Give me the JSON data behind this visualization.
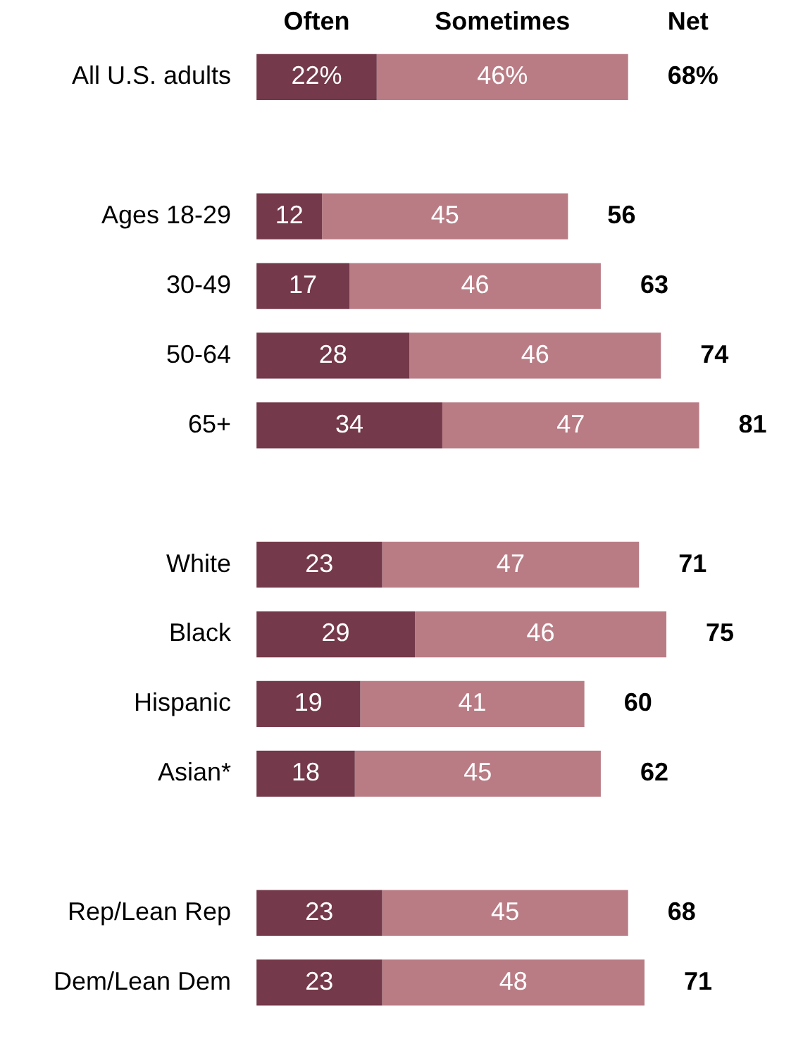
{
  "chart_data": {
    "type": "bar",
    "orientation": "horizontal",
    "stacked": true,
    "legend": false,
    "categories": [
      "All U.S. adults",
      null,
      "Ages 18-29",
      "30-49",
      "50-64",
      "65+",
      null,
      "White",
      "Black",
      "Hispanic",
      "Asian*",
      null,
      "Rep/Lean Rep",
      "Dem/Lean Dem"
    ],
    "series": [
      {
        "name": "Often",
        "color": "#74394a",
        "values": [
          22,
          null,
          12,
          17,
          28,
          34,
          null,
          23,
          29,
          19,
          18,
          null,
          23,
          23
        ],
        "value_labels": [
          "22%",
          null,
          "12",
          "17",
          "28",
          "34",
          null,
          "23",
          "29",
          "19",
          "18",
          null,
          "23",
          "23"
        ]
      },
      {
        "name": "Sometimes",
        "color": "#b97c85",
        "values": [
          46,
          null,
          45,
          46,
          46,
          47,
          null,
          47,
          46,
          41,
          45,
          null,
          45,
          48
        ],
        "value_labels": [
          "46%",
          null,
          "45",
          "46",
          "46",
          "47",
          null,
          "47",
          "46",
          "41",
          "45",
          null,
          "45",
          "48"
        ]
      }
    ],
    "totals": [
      "68%",
      null,
      "56",
      "63",
      "74",
      "81",
      null,
      "71",
      "75",
      "60",
      "62",
      null,
      "68",
      "71"
    ],
    "annotations": [
      "Net"
    ]
  }
}
